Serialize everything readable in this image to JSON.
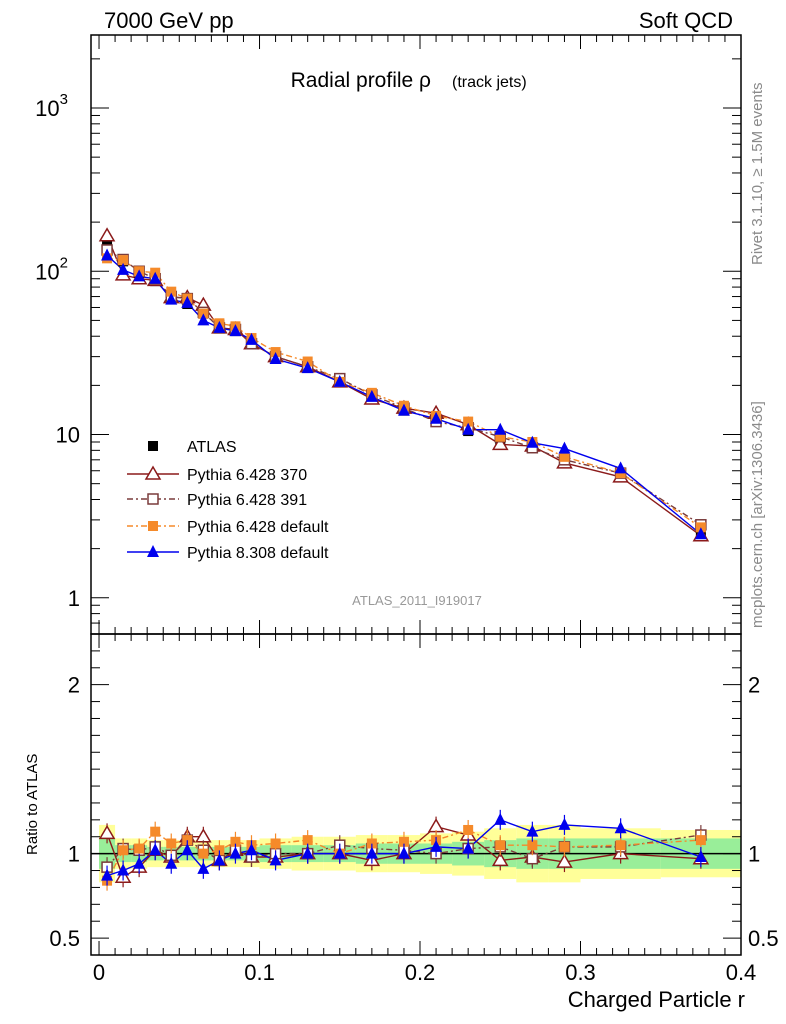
{
  "header": {
    "left": "7000 GeV pp",
    "right": "Soft QCD"
  },
  "side_labels": {
    "top": "Rivet 3.1.10, ≥ 1.5M events",
    "bottom": "mcplots.cern.ch [arXiv:1306.3436]"
  },
  "chart_data": [
    {
      "type": "line",
      "panel": "main",
      "title": "Radial profile ρ",
      "subtitle": "(track jets)",
      "analysis": "ATLAS_2011_I919017",
      "yscale": "log",
      "ylim": [
        0.6,
        2800
      ],
      "xlim": [
        -0.005,
        0.4
      ],
      "y_tick_labels": [
        "1",
        "10",
        "10^2",
        "10^3"
      ],
      "x": [
        0.005,
        0.015,
        0.025,
        0.035,
        0.045,
        0.055,
        0.065,
        0.075,
        0.085,
        0.095,
        0.11,
        0.13,
        0.15,
        0.17,
        0.19,
        0.21,
        0.23,
        0.25,
        0.27,
        0.29,
        0.325,
        0.375
      ],
      "legend_position": "lower-left",
      "series": [
        {
          "name": "ATLAS",
          "color": "#000000",
          "marker": "square-filled",
          "values": [
            145,
            115,
            98,
            87,
            71,
            63,
            55,
            47,
            43,
            37,
            30,
            26,
            21,
            17,
            14,
            12,
            10.5,
            9.3,
            8.6,
            7.0,
            5.5,
            2.5
          ]
        },
        {
          "name": "Pythia 6.428 370",
          "color": "#8b1a1a",
          "marker": "triangle-open",
          "values": [
            165,
            95,
            90,
            88,
            69,
            69,
            62,
            45,
            44,
            36,
            30,
            26,
            21,
            16.5,
            14.5,
            13.5,
            11.5,
            8.7,
            8.5,
            6.7,
            5.5,
            2.4
          ]
        },
        {
          "name": "Pythia 6.428 391",
          "color": "#7a3b3b",
          "marker": "square-open",
          "values": [
            135,
            118,
            100,
            90,
            70,
            68,
            56,
            45,
            44,
            36,
            30,
            26,
            22,
            17.5,
            14.5,
            12,
            11,
            9.7,
            8.3,
            7.0,
            5.8,
            2.8
          ]
        },
        {
          "name": "Pythia 6.428 default",
          "color": "#f58a2a",
          "marker": "square-filled",
          "values": [
            120,
            117,
            100,
            98,
            75,
            68,
            55,
            48,
            46,
            39,
            32,
            28,
            21,
            18,
            15,
            13,
            12,
            9.7,
            9.0,
            7.3,
            5.8,
            2.7
          ]
        },
        {
          "name": "Pythia 8.308 default",
          "color": "#0000ee",
          "marker": "triangle-filled",
          "values": [
            125,
            102,
            93,
            90,
            67,
            64,
            50,
            45,
            43,
            38,
            29,
            25.5,
            21,
            17,
            14,
            12.5,
            10.7,
            10.7,
            8.9,
            8.2,
            6.2,
            2.45
          ]
        }
      ]
    },
    {
      "type": "line",
      "panel": "ratio",
      "ylabel": "Ratio to ATLAS",
      "xlabel": "Charged Particle r",
      "ylim": [
        0.4,
        2.3
      ],
      "xlim": [
        -0.005,
        0.4
      ],
      "y_tick_labels": [
        "0.5",
        "1",
        "2"
      ],
      "x_tick_labels": [
        "0",
        "0.1",
        "0.2",
        "0.3",
        "0.4"
      ],
      "x": [
        0.005,
        0.015,
        0.025,
        0.035,
        0.045,
        0.055,
        0.065,
        0.075,
        0.085,
        0.095,
        0.11,
        0.13,
        0.15,
        0.17,
        0.19,
        0.21,
        0.23,
        0.25,
        0.27,
        0.29,
        0.325,
        0.375
      ],
      "bin_edges": [
        0,
        0.01,
        0.02,
        0.03,
        0.04,
        0.05,
        0.06,
        0.07,
        0.08,
        0.09,
        0.1,
        0.12,
        0.14,
        0.16,
        0.18,
        0.2,
        0.22,
        0.24,
        0.26,
        0.28,
        0.3,
        0.35,
        0.4
      ],
      "uncertainty_band": {
        "green_lo": [
          0.91,
          0.95,
          0.95,
          0.96,
          0.96,
          0.96,
          0.96,
          0.96,
          0.96,
          0.96,
          0.95,
          0.95,
          0.95,
          0.94,
          0.94,
          0.94,
          0.93,
          0.92,
          0.91,
          0.91,
          0.91,
          0.91
        ],
        "green_hi": [
          1.09,
          1.05,
          1.05,
          1.04,
          1.04,
          1.04,
          1.04,
          1.04,
          1.04,
          1.04,
          1.05,
          1.05,
          1.05,
          1.06,
          1.06,
          1.06,
          1.07,
          1.08,
          1.09,
          1.09,
          1.09,
          1.09
        ],
        "yellow_lo": [
          0.83,
          0.91,
          0.91,
          0.92,
          0.92,
          0.92,
          0.92,
          0.92,
          0.92,
          0.92,
          0.91,
          0.9,
          0.9,
          0.89,
          0.89,
          0.88,
          0.87,
          0.85,
          0.83,
          0.83,
          0.85,
          0.86
        ],
        "yellow_hi": [
          1.17,
          1.09,
          1.09,
          1.08,
          1.08,
          1.08,
          1.08,
          1.08,
          1.08,
          1.08,
          1.09,
          1.1,
          1.1,
          1.11,
          1.11,
          1.12,
          1.13,
          1.15,
          1.17,
          1.17,
          1.15,
          1.14
        ]
      },
      "series": [
        {
          "name": "Pythia 6.428 370",
          "color": "#8b1a1a",
          "marker": "triangle-open",
          "values": [
            1.12,
            0.86,
            0.92,
            1.02,
            0.98,
            1.1,
            1.1,
            0.96,
            1.02,
            0.98,
            0.98,
            1.0,
            1.0,
            0.96,
            1.0,
            1.16,
            1.11,
            0.96,
            0.98,
            0.95,
            1.0,
            0.97
          ]
        },
        {
          "name": "Pythia 6.428 391",
          "color": "#7a3b3b",
          "marker": "square-open",
          "values": [
            0.92,
            1.03,
            1.02,
            1.04,
            0.99,
            1.08,
            1.02,
            0.96,
            1.02,
            0.98,
            1.0,
            1.0,
            1.05,
            1.03,
            1.02,
            1.0,
            1.03,
            1.04,
            0.97,
            1.04,
            1.04,
            1.11
          ]
        },
        {
          "name": "Pythia 6.428 default",
          "color": "#f58a2a",
          "marker": "square-filled",
          "values": [
            0.84,
            1.02,
            1.03,
            1.13,
            1.06,
            1.08,
            1.0,
            1.02,
            1.07,
            1.05,
            1.06,
            1.08,
            1.0,
            1.06,
            1.07,
            1.08,
            1.14,
            1.05,
            1.05,
            1.04,
            1.05,
            1.08
          ]
        },
        {
          "name": "Pythia 8.308 default",
          "color": "#0000ee",
          "marker": "triangle-filled",
          "values": [
            0.87,
            0.9,
            0.94,
            1.02,
            0.94,
            1.02,
            0.91,
            0.96,
            1.0,
            1.02,
            0.96,
            1.0,
            1.0,
            1.0,
            1.0,
            1.04,
            1.03,
            1.2,
            1.13,
            1.17,
            1.15,
            0.98
          ]
        }
      ]
    }
  ]
}
